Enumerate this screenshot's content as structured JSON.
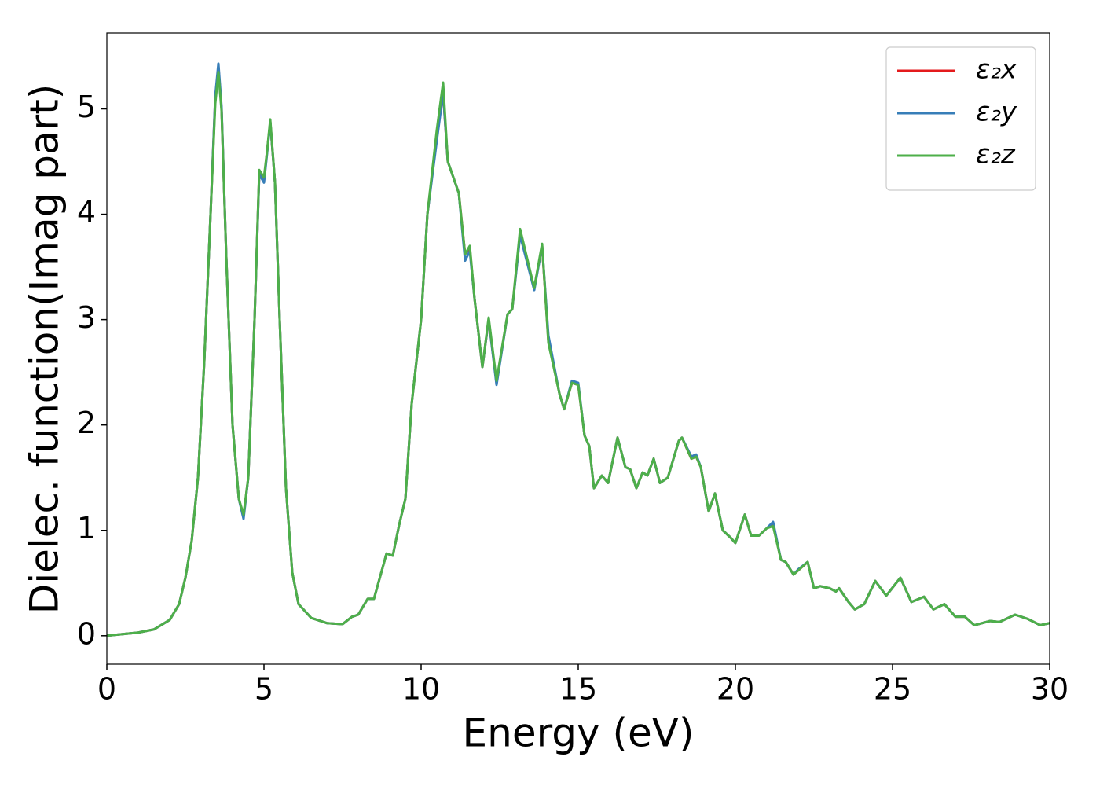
{
  "chart_data": {
    "type": "line",
    "x_label": "Energy (eV)",
    "y_label": "Dielec. function(Imag part)",
    "xlim": [
      0,
      30
    ],
    "ylim": [
      -0.27,
      5.72
    ],
    "xticks": [
      0,
      5,
      10,
      15,
      20,
      25,
      30
    ],
    "yticks": [
      0,
      1,
      2,
      3,
      4,
      5
    ],
    "legend": "upper right",
    "x": [
      0,
      1,
      1.5,
      2,
      2.3,
      2.5,
      2.7,
      2.9,
      3.1,
      3.3,
      3.45,
      3.55,
      3.65,
      3.8,
      4.0,
      4.2,
      4.35,
      4.5,
      4.7,
      4.85,
      5.0,
      5.1,
      5.2,
      5.35,
      5.5,
      5.7,
      5.9,
      6.1,
      6.5,
      7,
      7.5,
      7.8,
      8.0,
      8.3,
      8.5,
      8.9,
      9.1,
      9.3,
      9.5,
      9.7,
      10.0,
      10.2,
      10.5,
      10.7,
      10.85,
      11.2,
      11.4,
      11.55,
      11.7,
      11.95,
      12.15,
      12.4,
      12.75,
      12.9,
      13.15,
      13.6,
      13.85,
      14.05,
      14.4,
      14.55,
      14.8,
      15.0,
      15.2,
      15.35,
      15.5,
      15.75,
      15.95,
      16.25,
      16.5,
      16.65,
      16.85,
      17.05,
      17.2,
      17.4,
      17.6,
      17.85,
      18.2,
      18.3,
      18.6,
      18.75,
      18.9,
      19.15,
      19.35,
      19.6,
      19.85,
      20.0,
      20.3,
      20.5,
      20.75,
      21.0,
      21.2,
      21.45,
      21.6,
      21.85,
      22.0,
      22.3,
      22.5,
      22.7,
      23.0,
      23.2,
      23.3,
      23.6,
      23.8,
      24.1,
      24.45,
      24.8,
      25.25,
      25.6,
      26.0,
      26.3,
      26.65,
      27.0,
      27.3,
      27.6,
      28.1,
      28.4,
      28.9,
      29.3,
      29.7,
      30
    ],
    "series": [
      {
        "name": "ε₂x",
        "color": "#e41a1c",
        "values": [
          0.0,
          0.03,
          0.06,
          0.15,
          0.3,
          0.55,
          0.9,
          1.5,
          2.6,
          4.0,
          5.1,
          5.4,
          5.0,
          3.6,
          2.0,
          1.3,
          1.13,
          1.5,
          3.0,
          4.4,
          4.32,
          4.6,
          4.88,
          4.3,
          3.0,
          1.4,
          0.6,
          0.3,
          0.17,
          0.12,
          0.11,
          0.18,
          0.2,
          0.35,
          0.35,
          0.78,
          0.76,
          1.05,
          1.3,
          2.2,
          3.0,
          4.0,
          4.75,
          5.15,
          4.5,
          4.2,
          3.62,
          3.68,
          3.2,
          2.55,
          3.0,
          2.4,
          3.05,
          3.1,
          3.82,
          3.3,
          3.7,
          2.8,
          2.3,
          2.15,
          2.4,
          2.38,
          1.9,
          1.8,
          1.4,
          1.52,
          1.45,
          1.88,
          1.6,
          1.58,
          1.4,
          1.55,
          1.52,
          1.68,
          1.45,
          1.5,
          1.85,
          1.88,
          1.68,
          1.7,
          1.6,
          1.18,
          1.35,
          1.0,
          0.93,
          0.88,
          1.15,
          0.95,
          0.95,
          1.02,
          1.05,
          0.72,
          0.7,
          0.58,
          0.62,
          0.7,
          0.45,
          0.47,
          0.45,
          0.42,
          0.45,
          0.32,
          0.25,
          0.3,
          0.52,
          0.38,
          0.55,
          0.32,
          0.37,
          0.25,
          0.3,
          0.18,
          0.18,
          0.1,
          0.14,
          0.13,
          0.2,
          0.16,
          0.1,
          0.12
        ]
      },
      {
        "name": "ε₂y",
        "color": "#377eb8",
        "values": [
          0.0,
          0.03,
          0.06,
          0.15,
          0.3,
          0.55,
          0.9,
          1.5,
          2.6,
          4.0,
          5.12,
          5.43,
          5.02,
          3.6,
          2.0,
          1.3,
          1.11,
          1.5,
          3.0,
          4.38,
          4.3,
          4.58,
          4.88,
          4.3,
          3.0,
          1.4,
          0.6,
          0.3,
          0.17,
          0.12,
          0.11,
          0.18,
          0.2,
          0.35,
          0.35,
          0.78,
          0.76,
          1.05,
          1.3,
          2.2,
          3.0,
          4.0,
          4.7,
          5.15,
          4.5,
          4.2,
          3.56,
          3.65,
          3.2,
          2.55,
          3.0,
          2.38,
          3.05,
          3.1,
          3.8,
          3.28,
          3.7,
          2.85,
          2.3,
          2.15,
          2.42,
          2.4,
          1.9,
          1.8,
          1.4,
          1.52,
          1.45,
          1.88,
          1.6,
          1.58,
          1.4,
          1.55,
          1.52,
          1.68,
          1.45,
          1.5,
          1.85,
          1.88,
          1.7,
          1.72,
          1.6,
          1.18,
          1.35,
          1.0,
          0.93,
          0.88,
          1.15,
          0.95,
          0.95,
          1.02,
          1.08,
          0.72,
          0.7,
          0.58,
          0.63,
          0.7,
          0.45,
          0.47,
          0.45,
          0.42,
          0.45,
          0.32,
          0.25,
          0.3,
          0.52,
          0.38,
          0.55,
          0.32,
          0.37,
          0.25,
          0.3,
          0.18,
          0.18,
          0.1,
          0.14,
          0.13,
          0.2,
          0.16,
          0.1,
          0.12
        ]
      },
      {
        "name": "ε₂z",
        "color": "#4daf4a",
        "values": [
          0.0,
          0.03,
          0.06,
          0.15,
          0.3,
          0.55,
          0.9,
          1.5,
          2.6,
          4.0,
          5.05,
          5.35,
          4.98,
          3.6,
          2.0,
          1.3,
          1.15,
          1.5,
          3.0,
          4.42,
          4.35,
          4.6,
          4.9,
          4.3,
          3.0,
          1.4,
          0.6,
          0.3,
          0.17,
          0.12,
          0.11,
          0.18,
          0.2,
          0.35,
          0.35,
          0.78,
          0.76,
          1.05,
          1.3,
          2.2,
          3.0,
          4.0,
          4.8,
          5.25,
          4.5,
          4.2,
          3.62,
          3.7,
          3.2,
          2.55,
          3.02,
          2.42,
          3.05,
          3.1,
          3.86,
          3.3,
          3.72,
          2.78,
          2.3,
          2.15,
          2.4,
          2.38,
          1.9,
          1.8,
          1.4,
          1.52,
          1.45,
          1.88,
          1.6,
          1.58,
          1.4,
          1.55,
          1.52,
          1.68,
          1.45,
          1.5,
          1.85,
          1.88,
          1.68,
          1.7,
          1.6,
          1.18,
          1.35,
          1.0,
          0.93,
          0.88,
          1.15,
          0.95,
          0.95,
          1.02,
          1.04,
          0.72,
          0.7,
          0.58,
          0.62,
          0.7,
          0.45,
          0.47,
          0.45,
          0.42,
          0.45,
          0.32,
          0.25,
          0.3,
          0.52,
          0.38,
          0.55,
          0.32,
          0.37,
          0.25,
          0.3,
          0.18,
          0.18,
          0.1,
          0.14,
          0.13,
          0.2,
          0.16,
          0.1,
          0.12
        ]
      }
    ]
  }
}
